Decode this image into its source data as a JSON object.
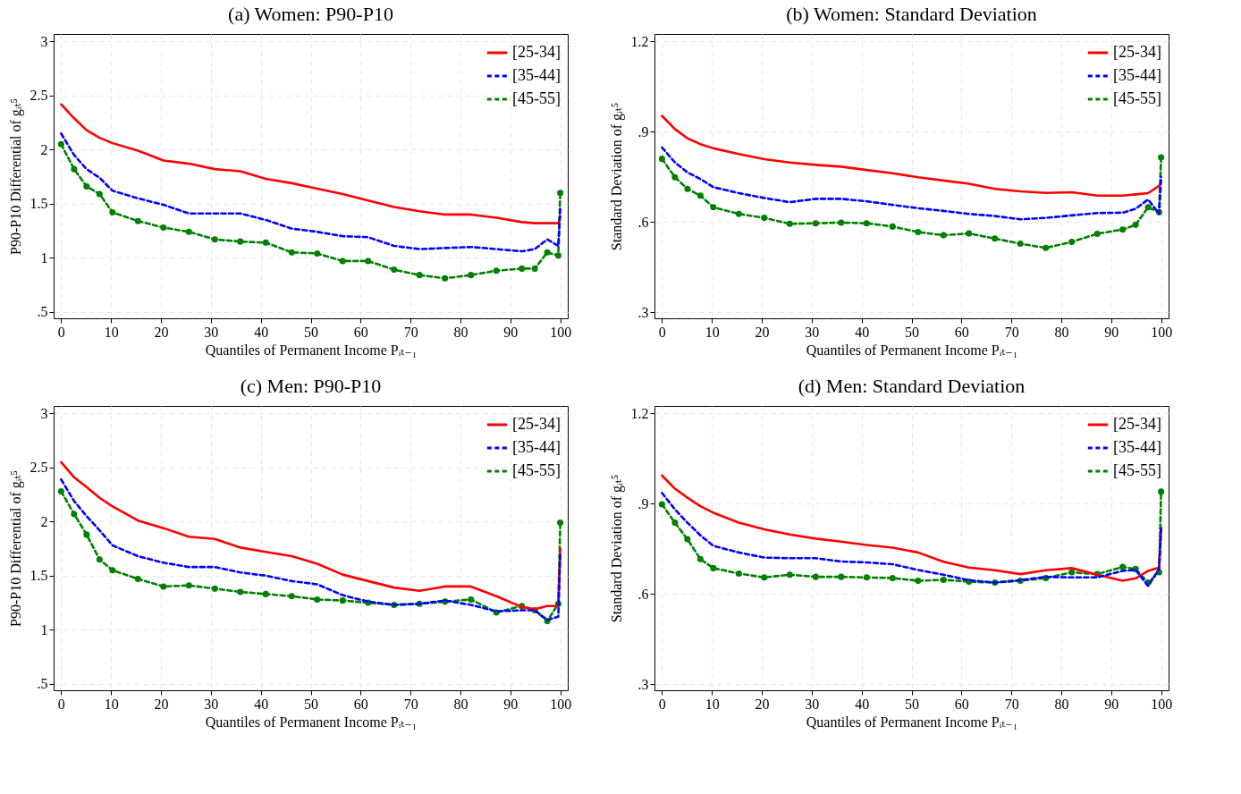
{
  "chart_data": [
    {
      "type": "line",
      "title": "(a) Women: P90-P10",
      "xlabel": "Quantiles of Permanent Income Pᵢₜ₋₁",
      "ylabel": "P90-P10 Differential of gᵢₜ⁵",
      "xlim": [
        -1.5,
        101.5
      ],
      "ylim": [
        0.44,
        3.07
      ],
      "xticks": [
        0,
        10,
        20,
        30,
        40,
        50,
        60,
        70,
        80,
        90,
        100
      ],
      "yticks": [
        {
          "value": 0.5,
          "label": ".5"
        },
        1,
        1.5,
        2,
        2.5,
        3
      ],
      "grid": true,
      "legend": "top right",
      "x": [
        0,
        2.6,
        5.1,
        7.7,
        10.3,
        15.4,
        20.5,
        25.6,
        30.8,
        35.9,
        41,
        46.2,
        51.3,
        56.4,
        61.5,
        66.7,
        71.8,
        76.9,
        82.1,
        87.2,
        92.3,
        94.9,
        97.4,
        99.6,
        100
      ],
      "series": [
        {
          "name": "[25-34]",
          "color": "#ff0000",
          "line_style": "solid",
          "values": [
            2.42,
            2.29,
            2.18,
            2.11,
            2.06,
            1.99,
            1.9,
            1.87,
            1.82,
            1.8,
            1.73,
            1.69,
            1.64,
            1.59,
            1.53,
            1.47,
            1.43,
            1.4,
            1.4,
            1.37,
            1.33,
            1.32,
            1.32,
            1.32,
            1.38
          ]
        },
        {
          "name": "[35-44]",
          "color": "#0000ff",
          "line_style": "dashed",
          "values": [
            2.15,
            1.95,
            1.82,
            1.74,
            1.62,
            1.55,
            1.49,
            1.41,
            1.41,
            1.41,
            1.35,
            1.27,
            1.24,
            1.2,
            1.19,
            1.11,
            1.08,
            1.09,
            1.1,
            1.08,
            1.06,
            1.08,
            1.17,
            1.11,
            1.45
          ]
        },
        {
          "name": "[45-55]",
          "color": "#008000",
          "line_style": "dashed",
          "marker": "circle",
          "values": [
            2.05,
            1.82,
            1.66,
            1.59,
            1.42,
            1.34,
            1.28,
            1.24,
            1.17,
            1.15,
            1.14,
            1.05,
            1.04,
            0.97,
            0.97,
            0.89,
            0.84,
            0.81,
            0.84,
            0.88,
            0.9,
            0.9,
            1.05,
            1.02,
            1.6
          ]
        }
      ]
    },
    {
      "type": "line",
      "title": "(b) Women: Standard Deviation",
      "xlabel": "Quantiles of Permanent Income Pᵢₜ₋₁",
      "ylabel": "Standard Deviation of gᵢₜ⁵",
      "xlim": [
        -1.5,
        101.5
      ],
      "ylim": [
        0.28,
        1.225
      ],
      "xticks": [
        0,
        10,
        20,
        30,
        40,
        50,
        60,
        70,
        80,
        90,
        100
      ],
      "yticks": [
        {
          "value": 0.3,
          "label": ".3"
        },
        {
          "value": 0.6,
          "label": ".6"
        },
        {
          "value": 0.9,
          "label": ".9"
        },
        1.2
      ],
      "grid": true,
      "legend": "top right",
      "x": [
        0,
        2.6,
        5.1,
        7.7,
        10.3,
        15.4,
        20.5,
        25.6,
        30.8,
        35.9,
        41,
        46.2,
        51.3,
        56.4,
        61.5,
        66.7,
        71.8,
        76.9,
        82.1,
        87.2,
        92.3,
        94.9,
        97.4,
        99.6,
        100
      ],
      "series": [
        {
          "name": "[25-34]",
          "color": "#ff0000",
          "line_style": "solid",
          "values": [
            0.953,
            0.909,
            0.878,
            0.859,
            0.845,
            0.826,
            0.809,
            0.798,
            0.79,
            0.784,
            0.773,
            0.762,
            0.749,
            0.738,
            0.727,
            0.71,
            0.702,
            0.697,
            0.699,
            0.688,
            0.688,
            0.692,
            0.696,
            0.72,
            0.732
          ]
        },
        {
          "name": "[35-44]",
          "color": "#0000ff",
          "line_style": "dashed",
          "values": [
            0.848,
            0.798,
            0.765,
            0.743,
            0.716,
            0.696,
            0.68,
            0.666,
            0.677,
            0.677,
            0.669,
            0.657,
            0.646,
            0.637,
            0.627,
            0.62,
            0.609,
            0.614,
            0.622,
            0.63,
            0.631,
            0.644,
            0.675,
            0.627,
            0.75
          ]
        },
        {
          "name": "[45-55]",
          "color": "#008000",
          "line_style": "dashed",
          "marker": "circle",
          "values": [
            0.81,
            0.749,
            0.71,
            0.688,
            0.649,
            0.627,
            0.614,
            0.594,
            0.596,
            0.598,
            0.596,
            0.585,
            0.567,
            0.556,
            0.562,
            0.545,
            0.528,
            0.514,
            0.534,
            0.561,
            0.575,
            0.591,
            0.649,
            0.633,
            0.815
          ]
        }
      ]
    },
    {
      "type": "line",
      "title": "(c) Men: P90-P10",
      "xlabel": "Quantiles of Permanent Income Pᵢₜ₋₁",
      "ylabel": "P90-P10 Differential of gᵢₜ⁵",
      "xlim": [
        -1.5,
        101.5
      ],
      "ylim": [
        0.44,
        3.07
      ],
      "xticks": [
        0,
        10,
        20,
        30,
        40,
        50,
        60,
        70,
        80,
        90,
        100
      ],
      "yticks": [
        {
          "value": 0.5,
          "label": ".5"
        },
        1,
        1.5,
        2,
        2.5,
        3
      ],
      "grid": true,
      "legend": "top right",
      "x": [
        0,
        2.6,
        5.1,
        7.7,
        10.3,
        15.4,
        20.5,
        25.6,
        30.8,
        35.9,
        41,
        46.2,
        51.3,
        56.4,
        61.5,
        66.7,
        71.8,
        76.9,
        82.1,
        87.2,
        92.3,
        94.9,
        97.4,
        99.6,
        100
      ],
      "series": [
        {
          "name": "[25-34]",
          "color": "#ff0000",
          "line_style": "solid",
          "values": [
            2.55,
            2.41,
            2.32,
            2.22,
            2.14,
            2.01,
            1.94,
            1.86,
            1.84,
            1.76,
            1.72,
            1.68,
            1.61,
            1.51,
            1.45,
            1.39,
            1.36,
            1.4,
            1.4,
            1.31,
            1.21,
            1.19,
            1.22,
            1.22,
            1.75
          ]
        },
        {
          "name": "[35-44]",
          "color": "#0000ff",
          "line_style": "dashed",
          "values": [
            2.39,
            2.19,
            2.05,
            1.92,
            1.78,
            1.68,
            1.62,
            1.58,
            1.58,
            1.53,
            1.5,
            1.45,
            1.42,
            1.32,
            1.26,
            1.23,
            1.24,
            1.27,
            1.23,
            1.17,
            1.18,
            1.18,
            1.09,
            1.12,
            1.72
          ]
        },
        {
          "name": "[45-55]",
          "color": "#008000",
          "line_style": "dashed",
          "marker": "circle",
          "values": [
            2.28,
            2.07,
            1.88,
            1.65,
            1.55,
            1.47,
            1.4,
            1.41,
            1.38,
            1.35,
            1.33,
            1.31,
            1.28,
            1.27,
            1.25,
            1.23,
            1.24,
            1.26,
            1.28,
            1.16,
            1.22,
            1.18,
            1.08,
            1.24,
            1.99
          ]
        }
      ]
    },
    {
      "type": "line",
      "title": "(d) Men: Standard Deviation",
      "xlabel": "Quantiles of Permanent Income Pᵢₜ₋₁",
      "ylabel": "Standard Deviation of gᵢₜ⁵",
      "xlim": [
        -1.5,
        101.5
      ],
      "ylim": [
        0.28,
        1.225
      ],
      "xticks": [
        0,
        10,
        20,
        30,
        40,
        50,
        60,
        70,
        80,
        90,
        100
      ],
      "yticks": [
        {
          "value": 0.3,
          "label": ".3"
        },
        {
          "value": 0.6,
          "label": ".6"
        },
        {
          "value": 0.9,
          "label": ".9"
        },
        1.2
      ],
      "grid": true,
      "legend": "top right",
      "x": [
        0,
        2.6,
        5.1,
        7.7,
        10.3,
        15.4,
        20.5,
        25.6,
        30.8,
        35.9,
        41,
        46.2,
        51.3,
        56.4,
        61.5,
        66.7,
        71.8,
        76.9,
        82.1,
        87.2,
        92.3,
        94.9,
        97.4,
        99.6,
        100
      ],
      "series": [
        {
          "name": "[25-34]",
          "color": "#ff0000",
          "line_style": "solid",
          "values": [
            0.994,
            0.95,
            0.92,
            0.892,
            0.87,
            0.837,
            0.815,
            0.798,
            0.784,
            0.774,
            0.763,
            0.754,
            0.738,
            0.707,
            0.688,
            0.679,
            0.666,
            0.679,
            0.686,
            0.664,
            0.644,
            0.652,
            0.677,
            0.688,
            0.82
          ]
        },
        {
          "name": "[35-44]",
          "color": "#0000ff",
          "line_style": "dashed",
          "values": [
            0.936,
            0.881,
            0.837,
            0.795,
            0.76,
            0.738,
            0.721,
            0.719,
            0.719,
            0.708,
            0.705,
            0.699,
            0.68,
            0.664,
            0.646,
            0.638,
            0.646,
            0.657,
            0.655,
            0.655,
            0.677,
            0.68,
            0.627,
            0.683,
            0.82
          ]
        },
        {
          "name": "[45-55]",
          "color": "#008000",
          "line_style": "dashed",
          "marker": "circle",
          "values": [
            0.898,
            0.837,
            0.782,
            0.716,
            0.686,
            0.668,
            0.655,
            0.664,
            0.657,
            0.657,
            0.655,
            0.653,
            0.644,
            0.647,
            0.641,
            0.638,
            0.644,
            0.653,
            0.672,
            0.666,
            0.69,
            0.683,
            0.638,
            0.672,
            0.94
          ]
        }
      ]
    }
  ]
}
